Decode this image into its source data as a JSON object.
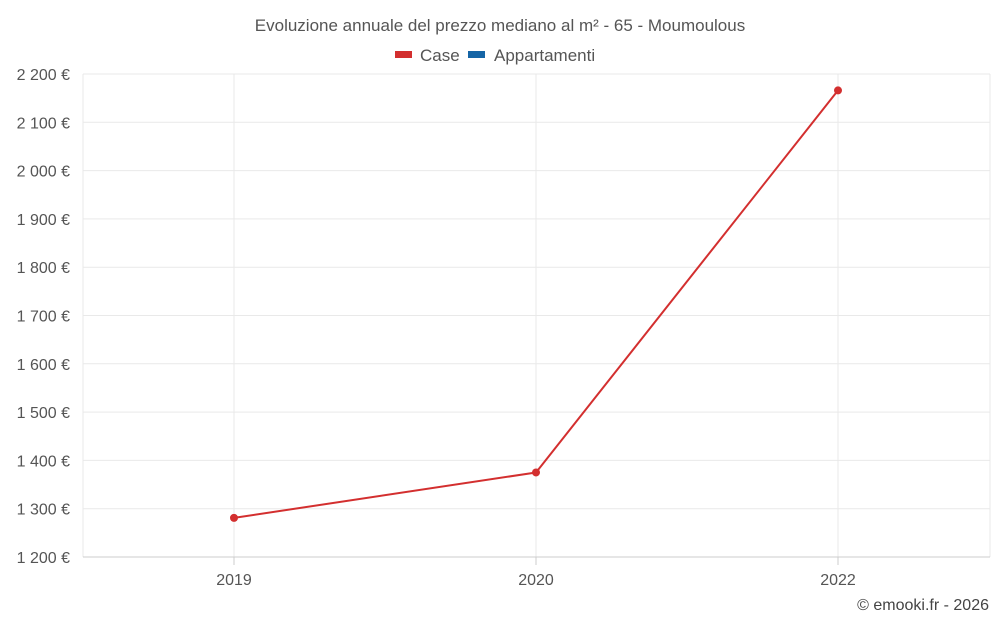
{
  "chart_data": {
    "type": "line",
    "title": "Evoluzione annuale del prezzo mediano al m² - 65 - Moumoulous",
    "categories": [
      "2019",
      "2020",
      "2022"
    ],
    "series": [
      {
        "name": "Case",
        "color": "#d32f2f",
        "values": [
          1281,
          1375,
          2166
        ]
      },
      {
        "name": "Appartamenti",
        "color": "#1565a6",
        "values": [
          null,
          null,
          null
        ]
      }
    ],
    "ylim": [
      1200,
      2200
    ],
    "yticks": [
      1200,
      1300,
      1400,
      1500,
      1600,
      1700,
      1800,
      1900,
      2000,
      2100,
      2200
    ],
    "ytick_labels": [
      "1 200 €",
      "1 300 €",
      "1 400 €",
      "1 500 €",
      "1 600 €",
      "1 700 €",
      "1 800 €",
      "1 900 €",
      "2 000 €",
      "2 100 €",
      "2 200 €"
    ],
    "xlabel": "",
    "ylabel": "",
    "grid": true,
    "legend_position": "top-center"
  },
  "credit": "© emooki.fr - 2026"
}
